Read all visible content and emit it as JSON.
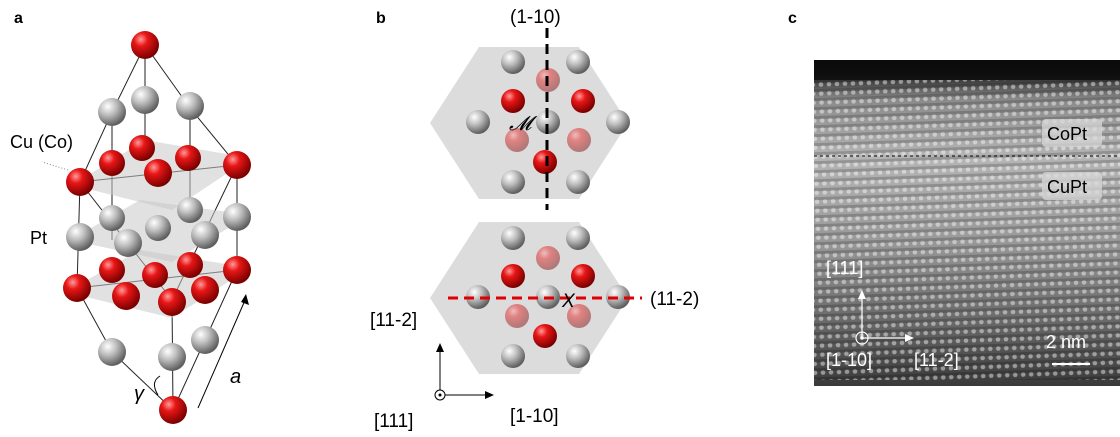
{
  "panel_a": {
    "label": "a",
    "cu_label": "Cu (Co)",
    "pt_label": "Pt",
    "gamma_label": "γ",
    "a_label": "a",
    "colors": {
      "cu_atom": "#d80a0a",
      "pt_atom": "#a6a6a6"
    }
  },
  "panel_b": {
    "label": "b",
    "plane_top": "(1-10)",
    "mirror_symbol": "𝓜",
    "plane_bottom": "(11-2)",
    "x_symbol": "X",
    "axis_vertical": "[11-2]",
    "axis_out_of_plane": "[111]",
    "axis_horizontal": "[1-10]",
    "colors": {
      "mirror_line": "#000000",
      "glide_line": "#e00000"
    }
  },
  "panel_c": {
    "label": "c",
    "layer_top": "CoPt",
    "layer_bottom": "CuPt",
    "axis_vertical": "[111]",
    "axis_out_of_plane": "[1-10]",
    "axis_horizontal": "[11-2]",
    "scale_bar": "2 nm"
  }
}
